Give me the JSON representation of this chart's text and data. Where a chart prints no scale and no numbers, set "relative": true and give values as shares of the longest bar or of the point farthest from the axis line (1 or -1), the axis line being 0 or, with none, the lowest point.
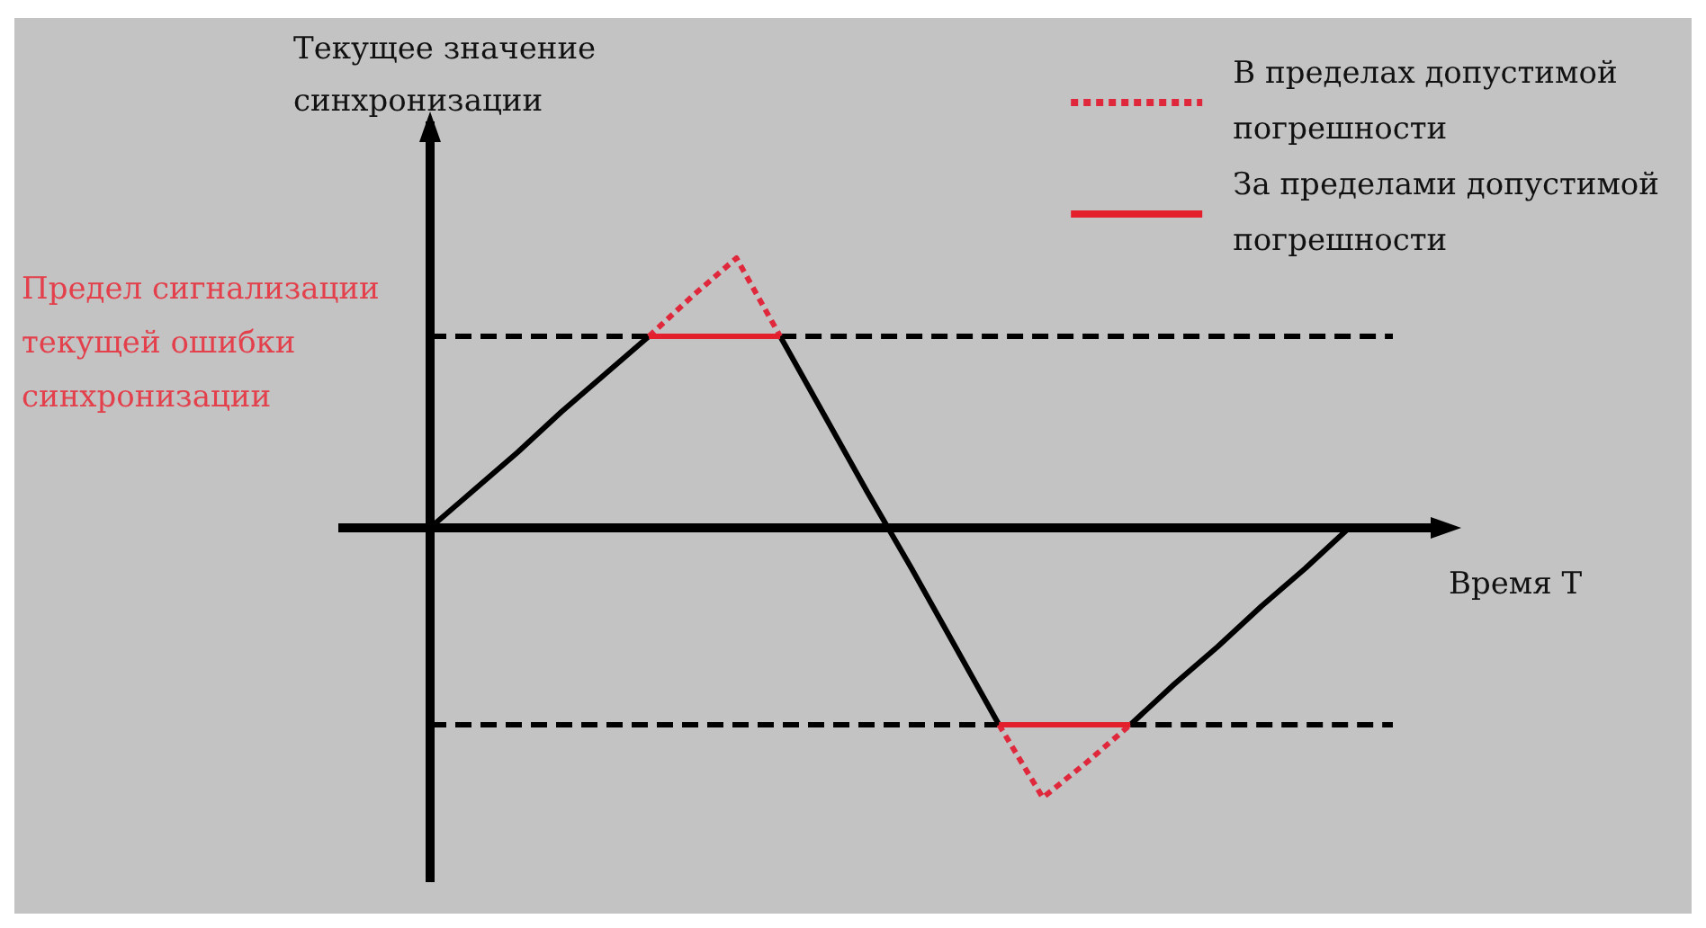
{
  "chart_data": {
    "type": "line",
    "relative": true,
    "xlabel": "Время Т",
    "ylabel": "Текущее значение синхронизации",
    "legend": "top right",
    "marker": "none",
    "categories": [
      null,
      null,
      null,
      null,
      null,
      null,
      null,
      null,
      null,
      null,
      null,
      null,
      null,
      null,
      null,
      null,
      null,
      null,
      null,
      null,
      null,
      null,
      null
    ],
    "series": [
      {
        "color": "#000000",
        "line_style": "dashed",
        "values": [
          0.71,
          0.71,
          0.71,
          0.71,
          0.71,
          0.71,
          null,
          null,
          0.71,
          0.71,
          0.71,
          0.71,
          0.71,
          0.71,
          0.71,
          0.71,
          0.71,
          0.71,
          0.71,
          0.71,
          0.71,
          0.71,
          0.71
        ]
      },
      {
        "color": "#000000",
        "line_style": "dashed",
        "values": [
          -0.73,
          -0.73,
          -0.73,
          -0.73,
          -0.73,
          -0.73,
          -0.73,
          -0.73,
          -0.73,
          -0.73,
          -0.73,
          -0.73,
          -0.73,
          -0.73,
          null,
          null,
          -0.73,
          -0.73,
          -0.73,
          -0.73,
          -0.73,
          -0.73,
          -0.73
        ]
      },
      {
        "color": "#000000",
        "line_style": "solid",
        "values": [
          0,
          0.14,
          0.28,
          0.43,
          0.57,
          0.71,
          null,
          null,
          0.71,
          0.42,
          0.13,
          -0.15,
          -0.44,
          -0.73,
          null,
          null,
          -0.73,
          -0.58,
          -0.44,
          -0.29,
          -0.15,
          0,
          null
        ]
      },
      {
        "name": "В пределах допустимой погрешности",
        "color": "#e0283c",
        "line_style": "dotted",
        "values": [
          null,
          null,
          null,
          null,
          null,
          0.71,
          0.86,
          1,
          0.71,
          null,
          null,
          null,
          null,
          -0.73,
          -1,
          -0.87,
          -0.73,
          null,
          null,
          null,
          null,
          null,
          null
        ]
      },
      {
        "name": "За пределами допустимой погрешности",
        "color": "#e3202c",
        "line_style": "solid",
        "values": [
          null,
          null,
          null,
          null,
          null,
          0.71,
          0.71,
          0.71,
          0.71,
          null,
          null,
          null,
          null,
          -0.73,
          -0.73,
          -0.73,
          -0.73,
          null,
          null,
          null,
          null,
          null,
          null
        ]
      }
    ],
    "annotations": [
      "Предел сигнализации текущей ошибки синхронизации"
    ]
  }
}
